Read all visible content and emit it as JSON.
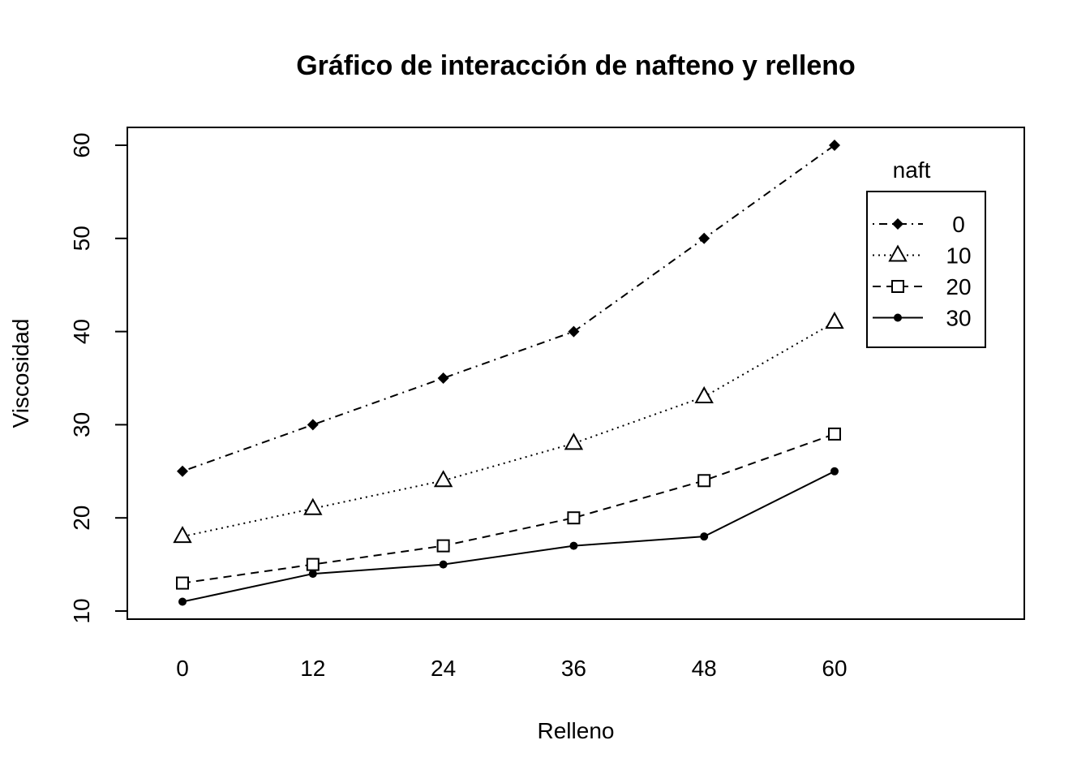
{
  "chart_data": {
    "type": "line",
    "title": "Gráfico de interacción de nafteno y relleno",
    "xlabel": "Relleno",
    "ylabel": "Viscosidad",
    "categories": [
      "0",
      "12",
      "24",
      "36",
      "48",
      "60"
    ],
    "ylim": [
      10,
      60
    ],
    "yticks": [
      "10",
      "20",
      "30",
      "40",
      "50",
      "60"
    ],
    "grid": false,
    "legend": {
      "title": "naft",
      "placement": "top-right"
    },
    "series": [
      {
        "name": "0",
        "marker": "diamond",
        "line": "dotdash",
        "values": [
          25,
          30,
          35,
          40,
          50,
          60
        ]
      },
      {
        "name": "10",
        "marker": "triangle",
        "line": "dotted",
        "values": [
          18,
          21,
          24,
          28,
          33,
          41
        ]
      },
      {
        "name": "20",
        "marker": "square",
        "line": "dashed",
        "values": [
          13,
          15,
          17,
          20,
          24,
          29
        ]
      },
      {
        "name": "30",
        "marker": "circle",
        "line": "solid",
        "values": [
          11,
          14,
          15,
          17,
          18,
          25
        ]
      }
    ]
  }
}
